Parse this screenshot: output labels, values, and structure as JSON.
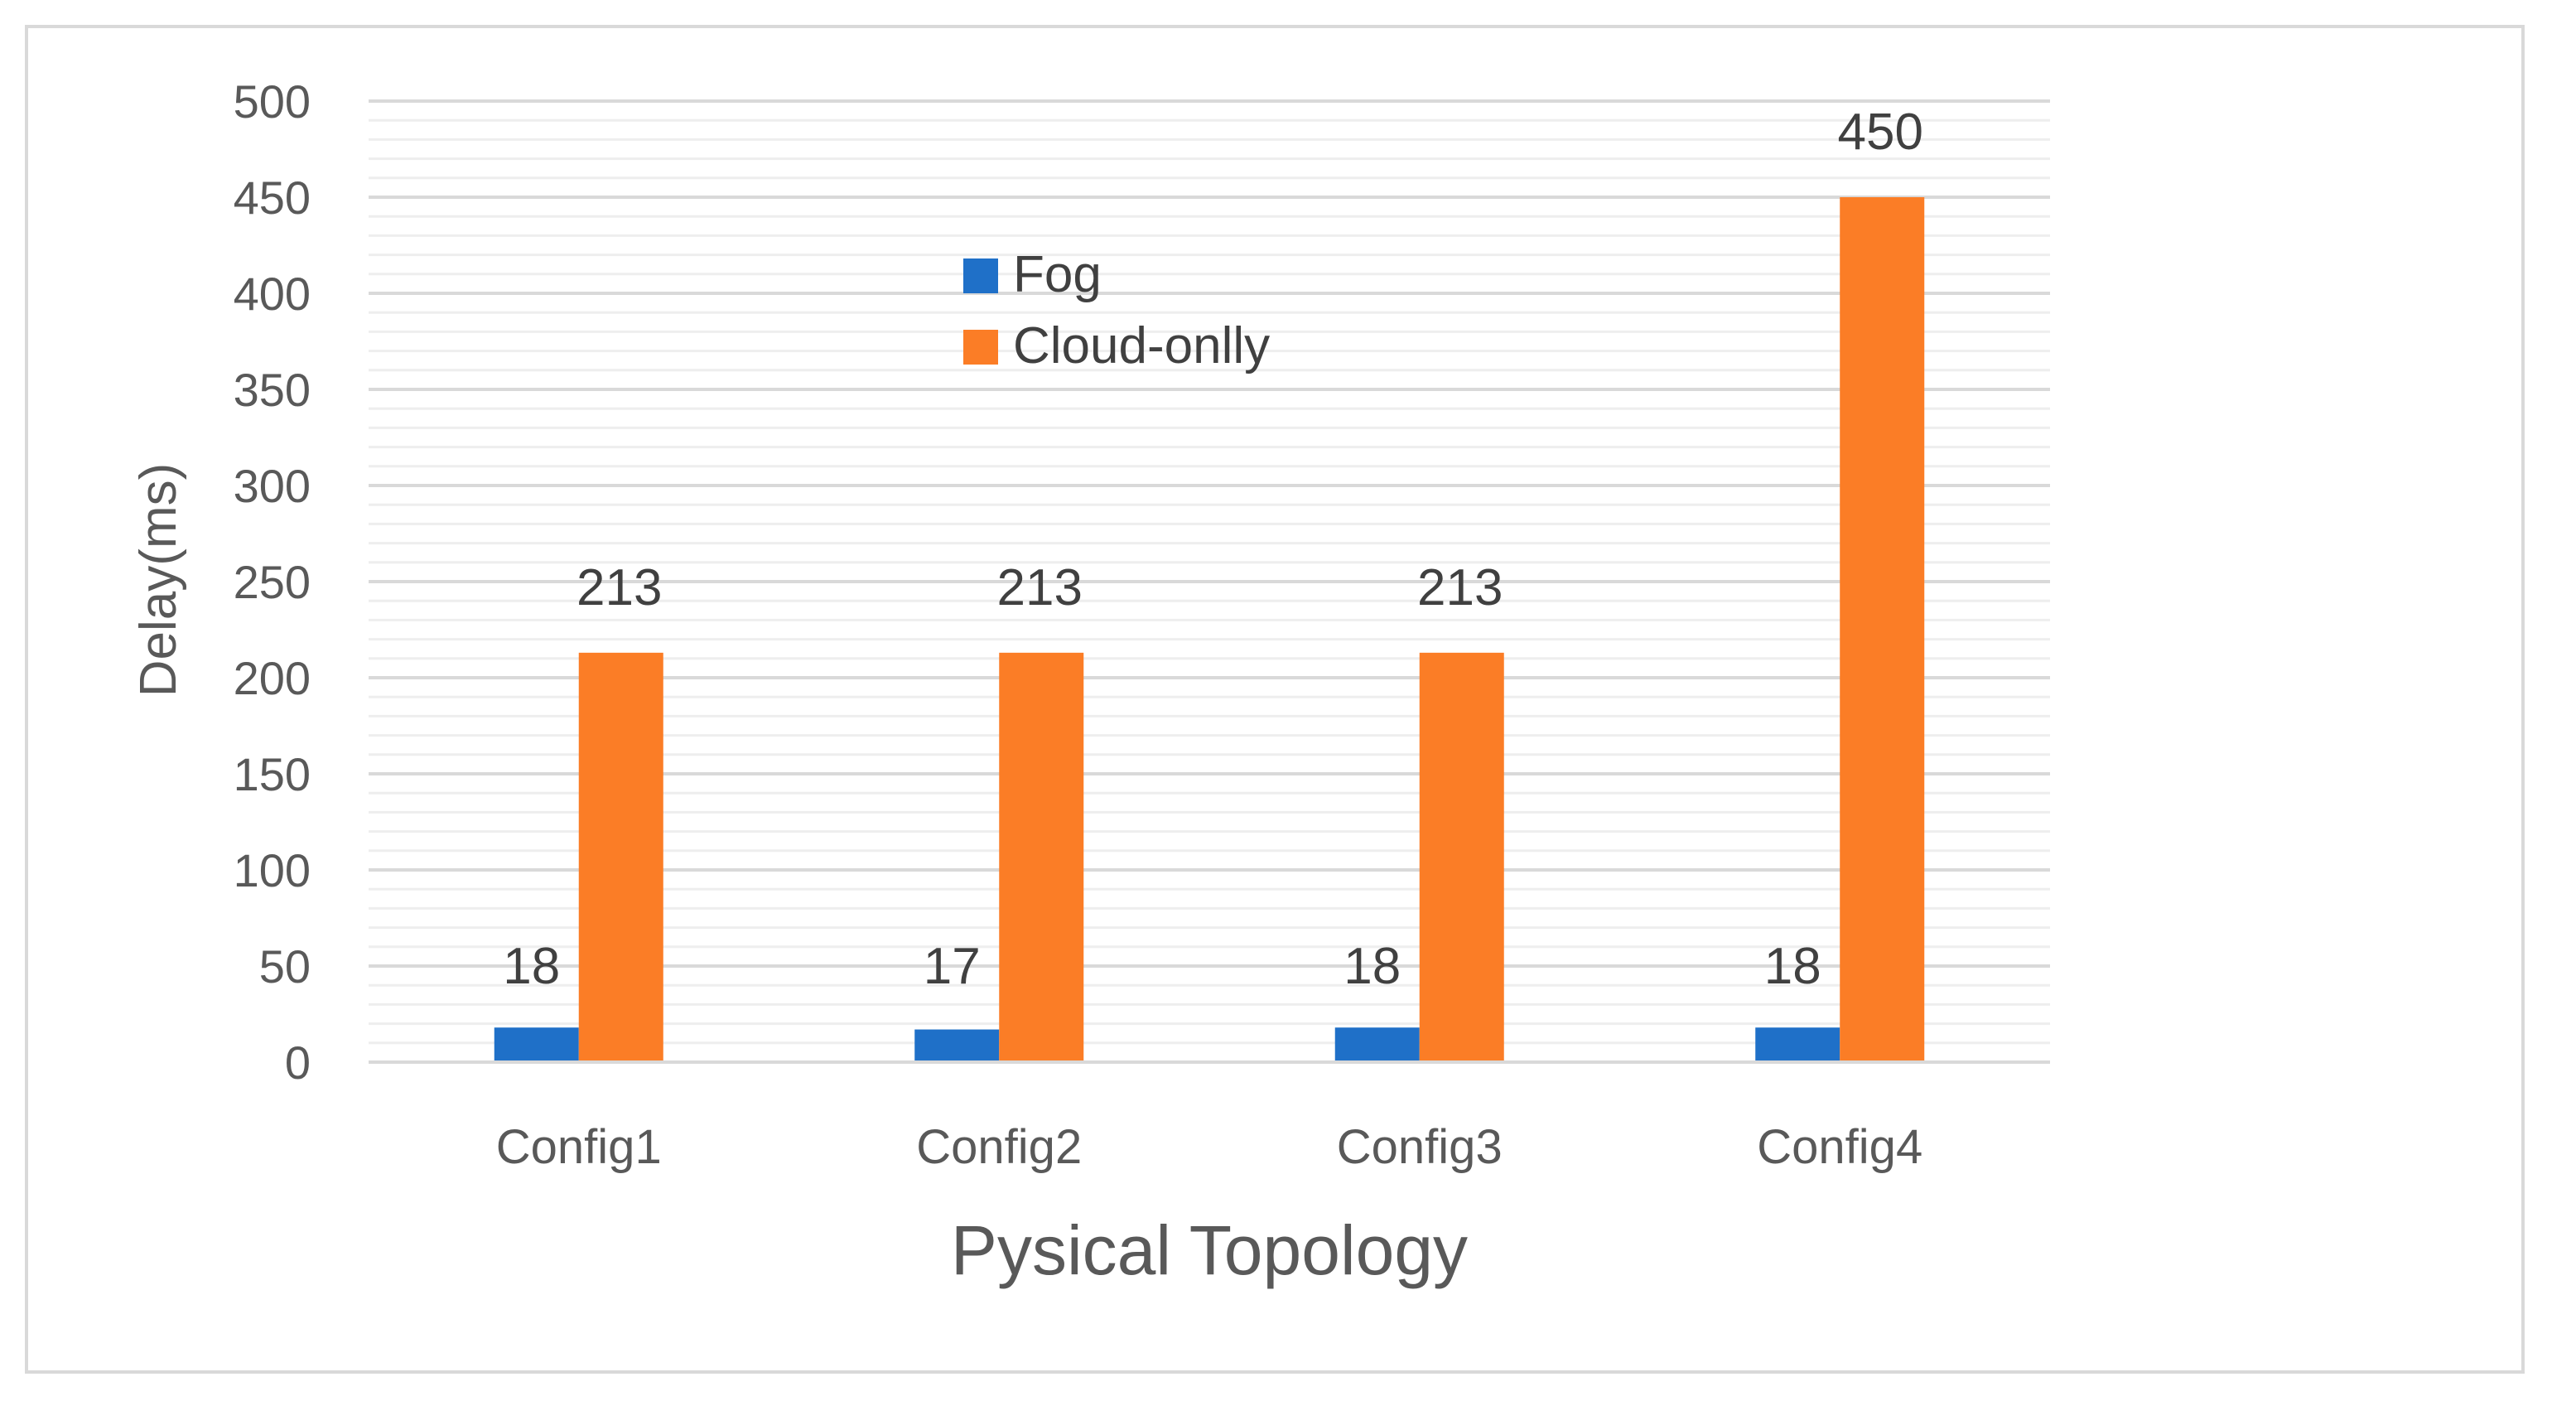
{
  "chart_data": {
    "type": "bar",
    "title": "",
    "xlabel": "Pysical Topology",
    "ylabel": "Delay(ms)",
    "categories": [
      "Config1",
      "Config2",
      "Config3",
      "Config4"
    ],
    "series": [
      {
        "name": "Fog",
        "values": [
          18,
          17,
          18,
          18
        ],
        "color": "#1f70c8"
      },
      {
        "name": "Cloud-onlly",
        "values": [
          213,
          213,
          213,
          450
        ],
        "color": "#fb7d26"
      }
    ],
    "ylim": [
      0,
      500
    ],
    "yticks": [
      0,
      50,
      100,
      150,
      200,
      250,
      300,
      350,
      400,
      450,
      500
    ],
    "grid": true,
    "legend": "top-center",
    "data_labels": {
      "Fog": [
        "18",
        "17",
        "18",
        "18"
      ],
      "Cloud-onlly": [
        "213",
        "213",
        "213",
        "450"
      ]
    }
  }
}
